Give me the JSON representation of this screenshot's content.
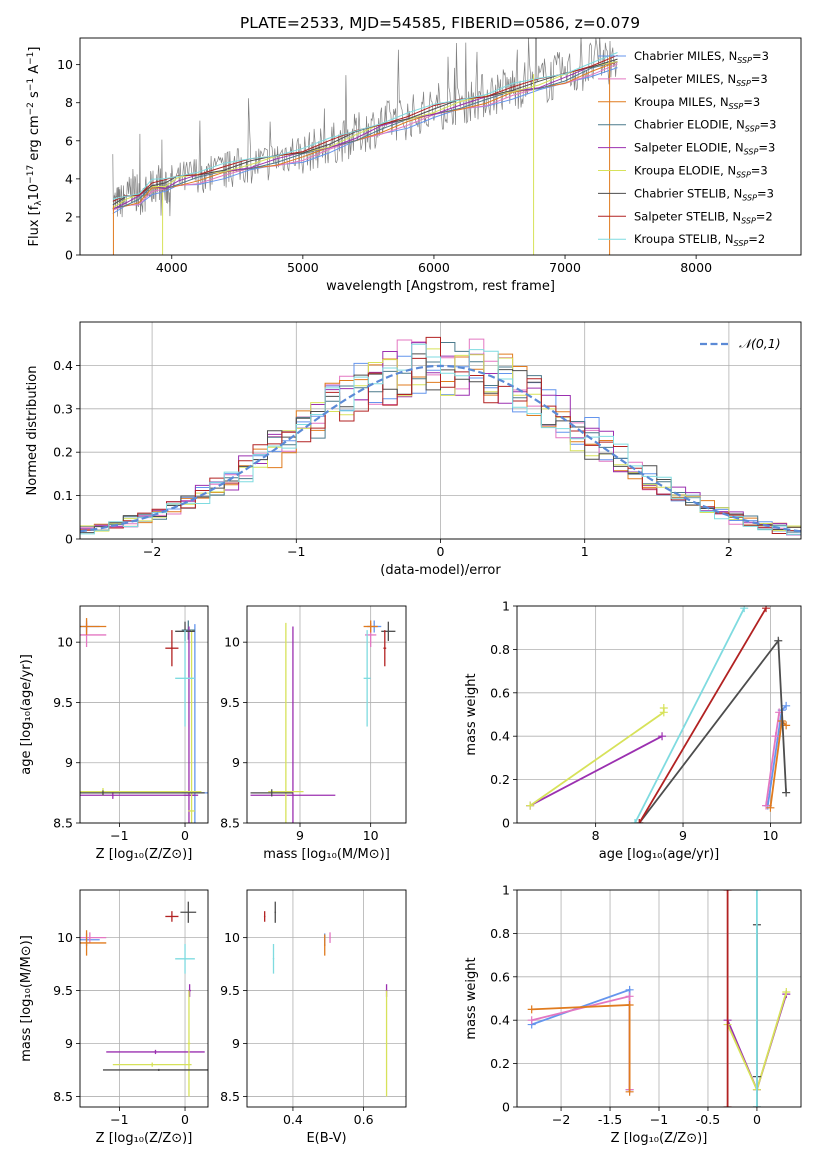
{
  "title": "PLATE=2533, MJD=54585, FIBERID=0586, z=0.079",
  "colors": {
    "data_gray": "#808080",
    "grid": "#b0b0b0",
    "models": [
      "#6495ed",
      "#e377c2",
      "#e07b1f",
      "#4c7a8c",
      "#9b30b0",
      "#d7e25a",
      "#4d4d4d",
      "#b22222",
      "#7fdbe0"
    ],
    "gaussian": "#5b8ad6"
  },
  "legend_models": [
    {
      "name": "Chabrier MILES, N",
      "sub": "SSP",
      "suffix": "=3"
    },
    {
      "name": "Salpeter MILES, N",
      "sub": "SSP",
      "suffix": "=3"
    },
    {
      "name": "Kroupa MILES, N",
      "sub": "SSP",
      "suffix": "=3"
    },
    {
      "name": "Chabrier ELODIE, N",
      "sub": "SSP",
      "suffix": "=3"
    },
    {
      "name": "Salpeter ELODIE, N",
      "sub": "SSP",
      "suffix": "=3"
    },
    {
      "name": "Kroupa ELODIE, N",
      "sub": "SSP",
      "suffix": "=3"
    },
    {
      "name": "Chabrier STELIB, N",
      "sub": "SSP",
      "suffix": "=3"
    },
    {
      "name": "Salpeter STELIB, N",
      "sub": "SSP",
      "suffix": "=2"
    },
    {
      "name": "Kroupa STELIB, N",
      "sub": "SSP",
      "suffix": "=2"
    }
  ],
  "chart_data": [
    {
      "id": "spectrum",
      "type": "line",
      "xlabel": "wavelength [Angstrom, rest frame]",
      "ylabel_main": "Flux [f",
      "ylabel_sub": "λ",
      "ylabel_rest": "10",
      "ylabel_exp1": "−17",
      "ylabel_unit": " erg cm",
      "ylabel_exp2": "−2",
      "ylabel_s": " s",
      "ylabel_exp3": "−1",
      "ylabel_A": " A",
      "ylabel_exp4": "−1",
      "ylabel_end": "]",
      "xlim": [
        3300,
        8800
      ],
      "ylim": [
        0,
        11.4
      ],
      "xticks": [
        4000,
        5000,
        6000,
        7000,
        8000
      ],
      "yticks": [
        0,
        2,
        4,
        6,
        8,
        10
      ],
      "data_series": {
        "x": [
          3550,
          3600,
          3650,
          3700,
          3750,
          3800,
          3850,
          3900,
          3950,
          4000,
          4100,
          4200,
          4300,
          4400,
          4500,
          4600,
          4700,
          4800,
          4900,
          5000,
          5100,
          5200,
          5300,
          5400,
          5500,
          5600,
          5700,
          5800,
          5900,
          6000,
          6100,
          6200,
          6300,
          6400,
          6500,
          6600,
          6700,
          6800,
          6900,
          7000,
          7100,
          7200,
          7300,
          7400
        ],
        "y": [
          2.6,
          2.8,
          2.9,
          3.6,
          3.0,
          3.2,
          3.5,
          3.9,
          3.4,
          3.8,
          4.0,
          4.3,
          4.2,
          4.4,
          4.6,
          4.8,
          4.8,
          5.1,
          5.4,
          5.3,
          5.6,
          5.8,
          6.0,
          6.3,
          6.6,
          6.9,
          7.1,
          7.2,
          7.5,
          7.6,
          7.9,
          8.1,
          8.2,
          8.4,
          8.6,
          8.8,
          9.0,
          9.1,
          9.3,
          9.5,
          9.7,
          10.0,
          10.3,
          10.2
        ]
      },
      "model_series": {
        "x": [
          3550,
          3650,
          3750,
          3850,
          3950,
          4050,
          4200,
          4400,
          4600,
          4800,
          5000,
          5200,
          5400,
          5600,
          5800,
          6000,
          6200,
          6400,
          6600,
          6800,
          7000,
          7200,
          7400
        ],
        "y": [
          2.5,
          2.8,
          3.0,
          3.6,
          3.6,
          3.9,
          4.1,
          4.4,
          4.7,
          5.0,
          5.3,
          5.7,
          6.2,
          6.7,
          7.1,
          7.5,
          7.9,
          8.2,
          8.6,
          8.9,
          9.3,
          9.8,
          10.2
        ]
      }
    },
    {
      "id": "residuals",
      "type": "area",
      "xlabel": "(data-model)/error",
      "ylabel": "Normed distribution",
      "xlim": [
        -2.5,
        2.5
      ],
      "ylim": [
        0,
        0.5
      ],
      "xticks": [
        -2,
        -1,
        0,
        1,
        2
      ],
      "yticks": [
        0.0,
        0.1,
        0.2,
        0.3,
        0.4
      ],
      "gaussian_legend": "𝒩(0,1)",
      "gaussian_mu": 0,
      "gaussian_sigma": 1,
      "bin_width": 0.1
    },
    {
      "id": "age_vs_Z",
      "type": "scatter",
      "xlabel": "Z [log₁₀(Z/Z⊙)]",
      "ylabel": "age  [log₁₀(age/yr)]",
      "xlim": [
        -1.6,
        0.35
      ],
      "ylim": [
        8.5,
        10.3
      ],
      "xticks": [
        -1,
        0
      ],
      "yticks": [
        8.5,
        9.0,
        9.5,
        10.0
      ],
      "points": [
        {
          "m": 0,
          "x": -1.5,
          "y": 10.13,
          "xe": 0.2,
          "ye": 0.05
        },
        {
          "m": 1,
          "x": -1.5,
          "y": 10.06,
          "xe": 0.3,
          "ye": 0.1
        },
        {
          "m": 2,
          "x": -1.5,
          "y": 10.13,
          "xe": 0.3,
          "ye": 0.07
        },
        {
          "m": 0,
          "x": 0.15,
          "y": 8.75,
          "xe": 0.2,
          "ye": 1.4
        },
        {
          "m": 3,
          "x": 0.05,
          "y": 10.1,
          "xe": 0.1,
          "ye": 0.08
        },
        {
          "m": 4,
          "x": -1.1,
          "y": 8.73,
          "xe": 1.3,
          "ye": 0.03
        },
        {
          "m": 4,
          "x": 0.06,
          "y": 8.73,
          "xe": 0.08,
          "ye": 1.4
        },
        {
          "m": 5,
          "x": -1.25,
          "y": 8.76,
          "xe": 1.5,
          "ye": 0.03
        },
        {
          "m": 5,
          "x": 0.1,
          "y": 8.6,
          "xe": 0.05,
          "ye": 1.5
        },
        {
          "m": 6,
          "x": 0.0,
          "y": 10.09,
          "xe": 0.15,
          "ye": 0.08
        },
        {
          "m": 6,
          "x": -1.25,
          "y": 8.75,
          "xe": 1.55,
          "ye": 0.02
        },
        {
          "m": 7,
          "x": -0.2,
          "y": 9.95,
          "xe": 0.1,
          "ye": 0.15
        },
        {
          "m": 8,
          "x": 0.0,
          "y": 9.7,
          "xe": 0.15,
          "ye": 0.4
        }
      ]
    },
    {
      "id": "age_vs_mass",
      "type": "scatter",
      "xlabel": "mass [log₁₀(M/M⊙)]",
      "ylabel": "",
      "xlim": [
        8.25,
        10.5
      ],
      "ylim": [
        8.5,
        10.3
      ],
      "xticks": [
        9,
        10
      ],
      "yticks": [
        8.5,
        9.0,
        9.5,
        10.0
      ],
      "points": [
        {
          "m": 0,
          "x": 10.05,
          "y": 10.13,
          "xe": 0.1,
          "ye": 0.05
        },
        {
          "m": 1,
          "x": 10.0,
          "y": 10.06,
          "xe": 0.08,
          "ye": 0.1
        },
        {
          "m": 2,
          "x": 10.0,
          "y": 10.13,
          "xe": 0.1,
          "ye": 0.05
        },
        {
          "m": 4,
          "x": 8.9,
          "y": 8.73,
          "xe": 0.6,
          "ye": 1.4
        },
        {
          "m": 5,
          "x": 8.8,
          "y": 8.76,
          "xe": 0.25,
          "ye": 1.4
        },
        {
          "m": 6,
          "x": 10.25,
          "y": 10.09,
          "xe": 0.1,
          "ye": 0.08
        },
        {
          "m": 6,
          "x": 8.6,
          "y": 8.75,
          "xe": 0.3,
          "ye": 0.03
        },
        {
          "m": 7,
          "x": 10.2,
          "y": 9.95,
          "xe": 0.02,
          "ye": 0.15
        },
        {
          "m": 8,
          "x": 9.95,
          "y": 9.7,
          "xe": 0.05,
          "ye": 0.4
        }
      ]
    },
    {
      "id": "weight_vs_age",
      "type": "line",
      "xlabel": "age  [log₁₀(age/yr)]",
      "ylabel": "mass weight",
      "xlim": [
        7.1,
        10.35
      ],
      "ylim": [
        0,
        1
      ],
      "xticks": [
        8,
        9,
        10
      ],
      "yticks": [
        0.0,
        0.2,
        0.4,
        0.6,
        0.8,
        1.0
      ],
      "series": [
        {
          "m": 0,
          "x": [
            9.97,
            10.13,
            10.18
          ],
          "y": [
            0.08,
            0.52,
            0.54
          ]
        },
        {
          "m": 1,
          "x": [
            9.95,
            10.06,
            10.1
          ],
          "y": [
            0.08,
            0.4,
            0.51
          ]
        },
        {
          "m": 2,
          "x": [
            10.0,
            10.13,
            10.18
          ],
          "y": [
            0.07,
            0.47,
            0.45
          ]
        },
        {
          "m": 4,
          "x": [
            7.25,
            8.76
          ],
          "y": [
            0.08,
            0.4
          ]
        },
        {
          "m": 5,
          "x": [
            7.25,
            8.78,
            8.78
          ],
          "y": [
            0.08,
            0.51,
            0.53
          ]
        },
        {
          "m": 6,
          "x": [
            8.5,
            10.09,
            10.18
          ],
          "y": [
            0.0,
            0.84,
            0.14
          ]
        },
        {
          "m": 7,
          "x": [
            8.5,
            9.95
          ],
          "y": [
            0.0,
            0.99
          ]
        },
        {
          "m": 8,
          "x": [
            8.45,
            9.7
          ],
          "y": [
            0.0,
            0.99
          ]
        }
      ]
    },
    {
      "id": "mass_vs_Z",
      "type": "scatter",
      "xlabel": "Z [log₁₀(Z/Z⊙)]",
      "ylabel": "mass [log₁₀(M/M⊙)]",
      "xlim": [
        -1.6,
        0.35
      ],
      "ylim": [
        8.4,
        10.45
      ],
      "xticks": [
        -1,
        0
      ],
      "yticks": [
        8.5,
        9.0,
        9.5,
        10.0
      ],
      "points": [
        {
          "m": 0,
          "x": -1.5,
          "y": 9.98,
          "xe": 0.2,
          "ye": 0.06
        },
        {
          "m": 1,
          "x": -1.45,
          "y": 10.0,
          "xe": 0.25,
          "ye": 0.05
        },
        {
          "m": 2,
          "x": -1.5,
          "y": 9.95,
          "xe": 0.3,
          "ye": 0.12
        },
        {
          "m": 4,
          "x": -0.45,
          "y": 8.92,
          "xe": 0.75,
          "ye": 0.02
        },
        {
          "m": 4,
          "x": 0.07,
          "y": 9.5,
          "xe": 0.02,
          "ye": 0.06
        },
        {
          "m": 5,
          "x": -0.5,
          "y": 8.8,
          "xe": 0.6,
          "ye": 0.02
        },
        {
          "m": 5,
          "x": 0.06,
          "y": 9.0,
          "xe": 0.02,
          "ye": 0.5
        },
        {
          "m": 6,
          "x": 0.05,
          "y": 10.24,
          "xe": 0.12,
          "ye": 0.1
        },
        {
          "m": 6,
          "x": -0.4,
          "y": 8.75,
          "xe": 0.85,
          "ye": 0.01
        },
        {
          "m": 7,
          "x": -0.2,
          "y": 10.2,
          "xe": 0.1,
          "ye": 0.05
        },
        {
          "m": 8,
          "x": 0.0,
          "y": 9.8,
          "xe": 0.15,
          "ye": 0.14
        }
      ]
    },
    {
      "id": "mass_vs_ebv",
      "type": "scatter",
      "xlabel": "E(B-V)",
      "ylabel": "",
      "xlim": [
        0.27,
        0.72
      ],
      "ylim": [
        8.4,
        10.45
      ],
      "xticks": [
        0.4,
        0.6
      ],
      "yticks": [
        8.5,
        9.0,
        9.5,
        10.0
      ],
      "points": [
        {
          "m": 0,
          "x": 0.49,
          "y": 9.98,
          "xe": 0.0,
          "ye": 0.06
        },
        {
          "m": 1,
          "x": 0.505,
          "y": 10.0,
          "xe": 0.0,
          "ye": 0.05
        },
        {
          "m": 2,
          "x": 0.49,
          "y": 9.93,
          "xe": 0.0,
          "ye": 0.1
        },
        {
          "m": 4,
          "x": 0.665,
          "y": 9.5,
          "xe": 0.0,
          "ye": 0.06
        },
        {
          "m": 5,
          "x": 0.665,
          "y": 9.0,
          "xe": 0.0,
          "ye": 0.5
        },
        {
          "m": 6,
          "x": 0.35,
          "y": 10.24,
          "xe": 0.0,
          "ye": 0.1
        },
        {
          "m": 7,
          "x": 0.32,
          "y": 10.2,
          "xe": 0.0,
          "ye": 0.05
        },
        {
          "m": 8,
          "x": 0.345,
          "y": 9.8,
          "xe": 0.0,
          "ye": 0.14
        }
      ]
    },
    {
      "id": "weight_vs_Z",
      "type": "line",
      "xlabel": "Z [log₁₀(Z/Z⊙)]",
      "ylabel": "mass weight",
      "xlim": [
        -2.45,
        0.45
      ],
      "ylim": [
        0,
        1
      ],
      "xticks": [
        -2.0,
        -1.5,
        -1.0,
        -0.5,
        0.0
      ],
      "yticks": [
        0.0,
        0.2,
        0.4,
        0.6,
        0.8,
        1.0
      ],
      "series": [
        {
          "m": 0,
          "x": [
            -2.3,
            -1.3,
            -1.3
          ],
          "y": [
            0.38,
            0.54,
            0.08
          ]
        },
        {
          "m": 1,
          "x": [
            -2.3,
            -1.3,
            -1.3
          ],
          "y": [
            0.4,
            0.51,
            0.08
          ]
        },
        {
          "m": 2,
          "x": [
            -2.3,
            -1.3,
            -1.3
          ],
          "y": [
            0.45,
            0.47,
            0.07
          ]
        },
        {
          "m": 4,
          "x": [
            -0.3,
            0.0,
            0.3
          ],
          "y": [
            0.4,
            0.08,
            0.52
          ]
        },
        {
          "m": 5,
          "x": [
            -0.3,
            0.0,
            0.3
          ],
          "y": [
            0.38,
            0.08,
            0.53
          ]
        },
        {
          "m": 6,
          "x": [
            0.0,
            0.0,
            0.0
          ],
          "y": [
            0.0,
            0.84,
            0.14
          ]
        },
        {
          "m": 7,
          "x": [
            -0.3,
            -0.3
          ],
          "y": [
            0.0,
            1.0
          ]
        },
        {
          "m": 8,
          "x": [
            0.0,
            0.0
          ],
          "y": [
            0.0,
            1.0
          ]
        }
      ]
    }
  ]
}
